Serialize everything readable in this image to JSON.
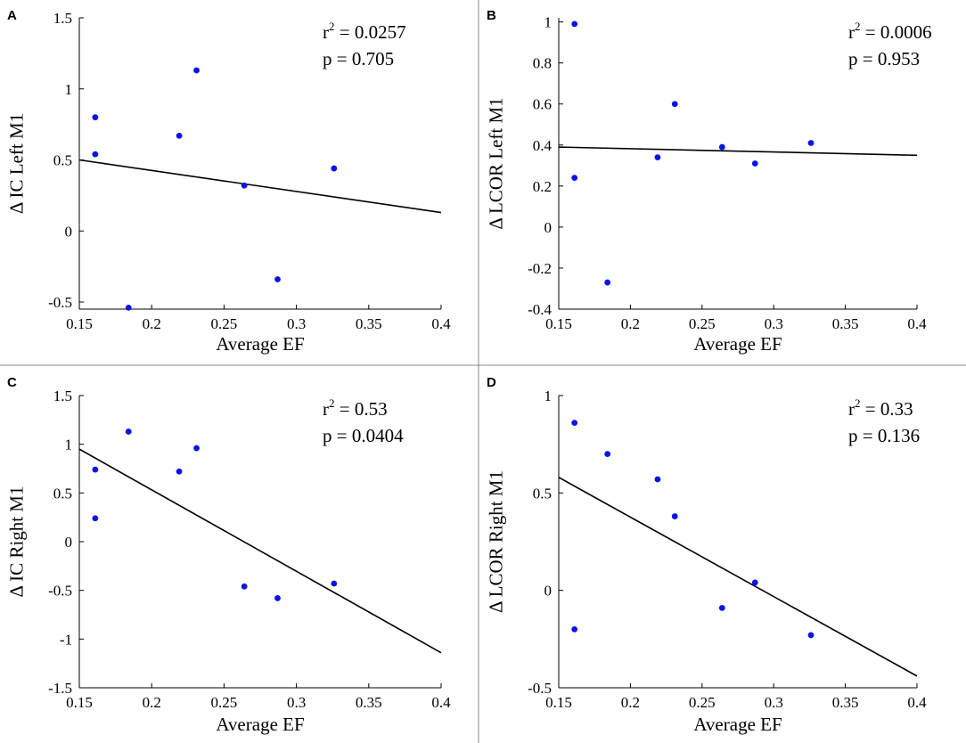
{
  "chart_data": [
    {
      "type": "scatter",
      "letter": "A",
      "xlabel": "Average EF",
      "ylabel": "Δ IC Left M1",
      "xlim": [
        0.15,
        0.4
      ],
      "ylim": [
        -0.55,
        1.5
      ],
      "xticks": [
        "0.15",
        "0.2",
        "0.25",
        "0.3",
        "0.35",
        "0.4"
      ],
      "xtick_values": [
        0.15,
        0.2,
        0.25,
        0.3,
        0.35,
        0.4
      ],
      "yticks": [
        "-0.5",
        "0",
        "0.5",
        "1",
        "1.5"
      ],
      "ytick_values": [
        -0.5,
        0,
        0.5,
        1,
        1.5
      ],
      "points": [
        [
          0.161,
          0.8
        ],
        [
          0.161,
          0.54
        ],
        [
          0.184,
          -0.54
        ],
        [
          0.219,
          0.67
        ],
        [
          0.231,
          1.13
        ],
        [
          0.264,
          0.32
        ],
        [
          0.287,
          -0.34
        ],
        [
          0.326,
          0.44
        ]
      ],
      "fit_line": [
        [
          0.15,
          0.5
        ],
        [
          0.4,
          0.13
        ]
      ],
      "r2_prefix": "r",
      "r2_exp": "2",
      "r2_value": " = 0.0257",
      "p_text": "p = 0.705"
    },
    {
      "type": "scatter",
      "letter": "B",
      "xlabel": "Average EF",
      "ylabel": "Δ LCOR Left M1",
      "xlim": [
        0.15,
        0.4
      ],
      "ylim": [
        -0.4,
        1.02
      ],
      "xticks": [
        "0.15",
        "0.2",
        "0.25",
        "0.3",
        "0.35",
        "0.4"
      ],
      "xtick_values": [
        0.15,
        0.2,
        0.25,
        0.3,
        0.35,
        0.4
      ],
      "yticks": [
        "-0.4",
        "-0.2",
        "0",
        "0.2",
        "0.4",
        "0.6",
        "0.8",
        "1"
      ],
      "ytick_values": [
        -0.4,
        -0.2,
        0,
        0.2,
        0.4,
        0.6,
        0.8,
        1
      ],
      "points": [
        [
          0.161,
          0.99
        ],
        [
          0.161,
          0.24
        ],
        [
          0.184,
          -0.27
        ],
        [
          0.219,
          0.34
        ],
        [
          0.231,
          0.6
        ],
        [
          0.264,
          0.39
        ],
        [
          0.287,
          0.31
        ],
        [
          0.326,
          0.41
        ]
      ],
      "fit_line": [
        [
          0.15,
          0.39
        ],
        [
          0.4,
          0.35
        ]
      ],
      "r2_prefix": "r",
      "r2_exp": "2",
      "r2_value": " = 0.0006",
      "p_text": "p = 0.953"
    },
    {
      "type": "scatter",
      "letter": "C",
      "xlabel": "Average EF",
      "ylabel": "Δ IC Right M1",
      "xlim": [
        0.15,
        0.4
      ],
      "ylim": [
        -1.5,
        1.5
      ],
      "xticks": [
        "0.15",
        "0.2",
        "0.25",
        "0.3",
        "0.35",
        "0.4"
      ],
      "xtick_values": [
        0.15,
        0.2,
        0.25,
        0.3,
        0.35,
        0.4
      ],
      "yticks": [
        "-1.5",
        "-1",
        "-0.5",
        "0",
        "0.5",
        "1",
        "1.5"
      ],
      "ytick_values": [
        -1.5,
        -1,
        -0.5,
        0,
        0.5,
        1,
        1.5
      ],
      "points": [
        [
          0.161,
          0.74
        ],
        [
          0.161,
          0.24
        ],
        [
          0.184,
          1.13
        ],
        [
          0.219,
          0.72
        ],
        [
          0.231,
          0.96
        ],
        [
          0.264,
          -0.46
        ],
        [
          0.287,
          -0.58
        ],
        [
          0.326,
          -0.43
        ]
      ],
      "fit_line": [
        [
          0.15,
          0.95
        ],
        [
          0.4,
          -1.14
        ]
      ],
      "r2_prefix": "r",
      "r2_exp": "2",
      "r2_value": " = 0.53",
      "p_text": "p = 0.0404"
    },
    {
      "type": "scatter",
      "letter": "D",
      "xlabel": "Average EF",
      "ylabel": "Δ LCOR Right M1",
      "xlim": [
        0.15,
        0.4
      ],
      "ylim": [
        -0.5,
        1
      ],
      "xticks": [
        "0.15",
        "0.2",
        "0.25",
        "0.3",
        "0.35",
        "0.4"
      ],
      "xtick_values": [
        0.15,
        0.2,
        0.25,
        0.3,
        0.35,
        0.4
      ],
      "yticks": [
        "-0.5",
        "0",
        "0.5",
        "1"
      ],
      "ytick_values": [
        -0.5,
        0,
        0.5,
        1
      ],
      "points": [
        [
          0.161,
          0.86
        ],
        [
          0.161,
          -0.2
        ],
        [
          0.184,
          0.7
        ],
        [
          0.219,
          0.57
        ],
        [
          0.231,
          0.38
        ],
        [
          0.264,
          -0.09
        ],
        [
          0.287,
          0.04
        ],
        [
          0.326,
          -0.23
        ]
      ],
      "fit_line": [
        [
          0.15,
          0.58
        ],
        [
          0.4,
          -0.44
        ]
      ],
      "r2_prefix": "r",
      "r2_exp": "2",
      "r2_value": " = 0.33",
      "p_text": "p = 0.136"
    }
  ],
  "colors": {
    "point": "#0a14e6",
    "line": "#000000",
    "divider": "#888888"
  }
}
